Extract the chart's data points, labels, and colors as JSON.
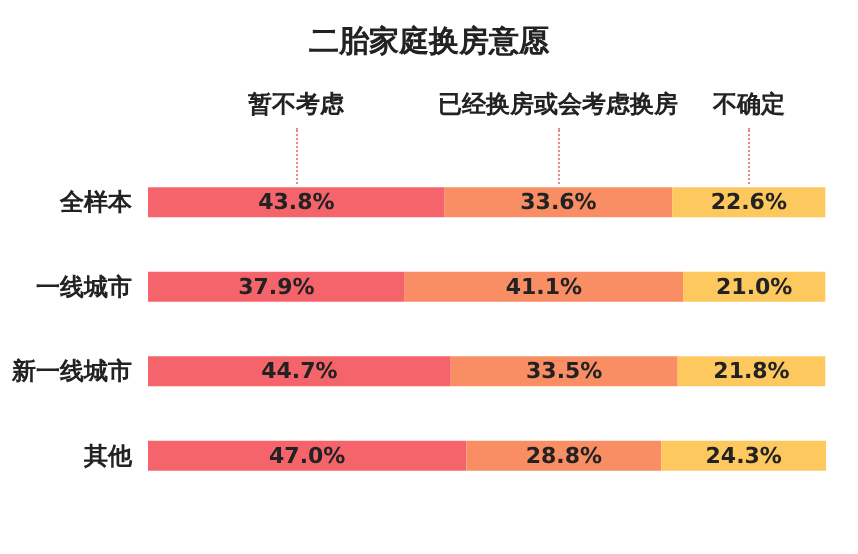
{
  "chart_data": {
    "type": "bar",
    "title": "二胎家庭换房意愿",
    "orientation": "horizontal",
    "stacked": true,
    "categories": [
      "全样本",
      "一线城市",
      "新一线城市",
      "其他"
    ],
    "series": [
      {
        "name": "暂不考虑",
        "color": "#f5646a",
        "values": [
          43.8,
          37.9,
          44.7,
          47.0
        ],
        "value_labels": [
          "43.8%",
          "37.9%",
          "44.7%",
          "47.0%"
        ]
      },
      {
        "name": "已经换房或会考虑换房",
        "color": "#f98e64",
        "values": [
          33.6,
          41.1,
          33.5,
          28.8
        ],
        "value_labels": [
          "33.6%",
          "41.1%",
          "33.5%",
          "28.8%"
        ]
      },
      {
        "name": "不确定",
        "color": "#fdc85e",
        "values": [
          22.6,
          21.0,
          21.8,
          24.3
        ],
        "value_labels": [
          "22.6%",
          "21.0%",
          "21.8%",
          "24.3%"
        ]
      }
    ]
  }
}
